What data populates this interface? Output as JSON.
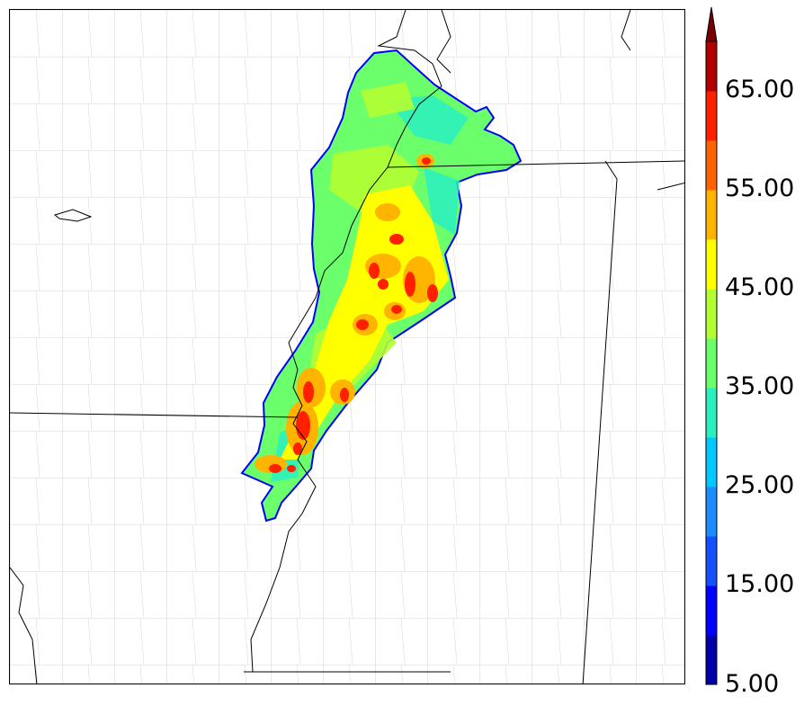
{
  "colorbar": {
    "tick_labels": [
      "5.00",
      "15.00",
      "25.00",
      "35.00",
      "45.00",
      "55.00",
      "65.00"
    ],
    "colors": [
      "#0000a8",
      "#0000ff",
      "#1450ff",
      "#1c8cff",
      "#00c8ff",
      "#2af0c0",
      "#6cff6c",
      "#b4ff32",
      "#ffff00",
      "#ffb400",
      "#ff6400",
      "#ff2000",
      "#b00000"
    ],
    "extend_color": "#780000"
  },
  "map": {
    "land_color": "#ffffff",
    "county_line_color": "#9a9a9a",
    "state_line_color": "#000000"
  }
}
